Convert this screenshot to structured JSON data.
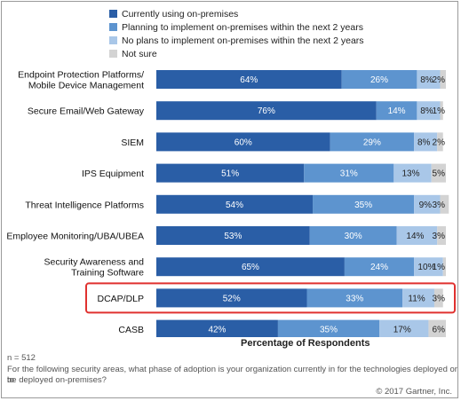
{
  "chart_data": {
    "type": "bar",
    "orientation": "horizontal",
    "stacked": true,
    "percent_stacked": true,
    "categories": [
      [
        "Endpoint Protection Platforms/",
        "Mobile Device Management"
      ],
      [
        "Secure Email/Web Gateway"
      ],
      [
        "SIEM"
      ],
      [
        "IPS Equipment"
      ],
      [
        "Threat Intelligence Platforms"
      ],
      [
        "Employee Monitoring/UBA/UBEA"
      ],
      [
        "Security Awareness and",
        "Training Software"
      ],
      [
        "DCAP/DLP"
      ],
      [
        "CASB"
      ]
    ],
    "series": [
      {
        "name": "Currently using on-premises",
        "color": "#2a5ea6",
        "label_color": "#ffffff",
        "values": [
          64,
          76,
          60,
          51,
          54,
          53,
          65,
          52,
          42
        ],
        "labels": [
          "64%",
          "76%",
          "60%",
          "51%",
          "54%",
          "53%",
          "65%",
          "52%",
          "42%"
        ]
      },
      {
        "name": "Planning to implement on-premises within the next 2 years",
        "color": "#5d94cf",
        "label_color": "#ffffff",
        "values": [
          26,
          14,
          29,
          31,
          35,
          30,
          24,
          33,
          35
        ],
        "labels": [
          "26%",
          "14%",
          "29%",
          "31%",
          "35%",
          "30%",
          "24%",
          "33%",
          "35%"
        ]
      },
      {
        "name": "No plans to implement on-premises within the next 2 years",
        "color": "#a9c7e8",
        "label_color": "#222222",
        "values": [
          8,
          8,
          8,
          13,
          9,
          14,
          10,
          11,
          17
        ],
        "labels": [
          "8%",
          "8%",
          "8%",
          "13%",
          "9%",
          "14%",
          "10%",
          "11%",
          "17%"
        ]
      },
      {
        "name": "Not sure",
        "color": "#d3d3d3",
        "label_color": "#222222",
        "values": [
          2,
          1,
          2,
          5,
          3,
          3,
          1,
          3,
          6
        ],
        "labels": [
          "2%",
          "1%",
          "2%",
          "5%",
          "3%",
          "3%",
          "1%",
          "3%",
          "6%"
        ]
      }
    ],
    "xlabel": "Percentage of Respondents",
    "xlim": [
      0,
      100
    ],
    "highlight_category": "DCAP/DLP",
    "highlight_color": "#e0312f",
    "legend_position": "top"
  },
  "footer": {
    "n": "n = 512",
    "question": [
      "For the following security areas, what phase of adoption is your organization currently in for the technologies deployed or to",
      "be deployed on-premises?"
    ],
    "source": "© 2017 Gartner, Inc."
  }
}
